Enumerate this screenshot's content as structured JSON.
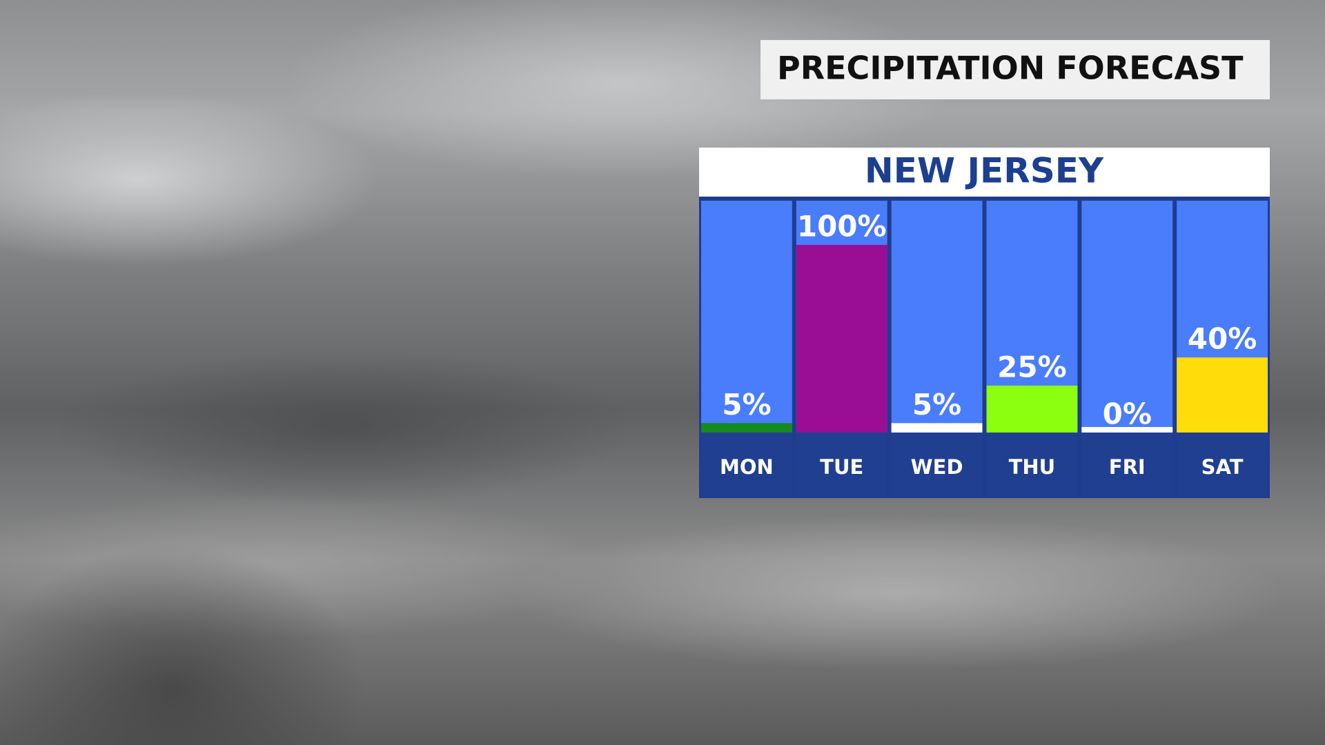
{
  "chart_data": {
    "type": "bar",
    "title": "PRECIPITATION FORECAST",
    "subtitle": "NEW JERSEY",
    "categories": [
      "MON",
      "TUE",
      "WED",
      "THU",
      "FRI",
      "SAT"
    ],
    "values": [
      5,
      100,
      5,
      25,
      0,
      40
    ],
    "value_labels": [
      "5%",
      "100%",
      "5%",
      "25%",
      "0%",
      "40%"
    ],
    "colors": [
      "#168a1c",
      "#9a0e96",
      "#ffffff",
      "#8cff10",
      "#ffffff",
      "#ffdc0a"
    ],
    "ylim": [
      0,
      100
    ]
  }
}
